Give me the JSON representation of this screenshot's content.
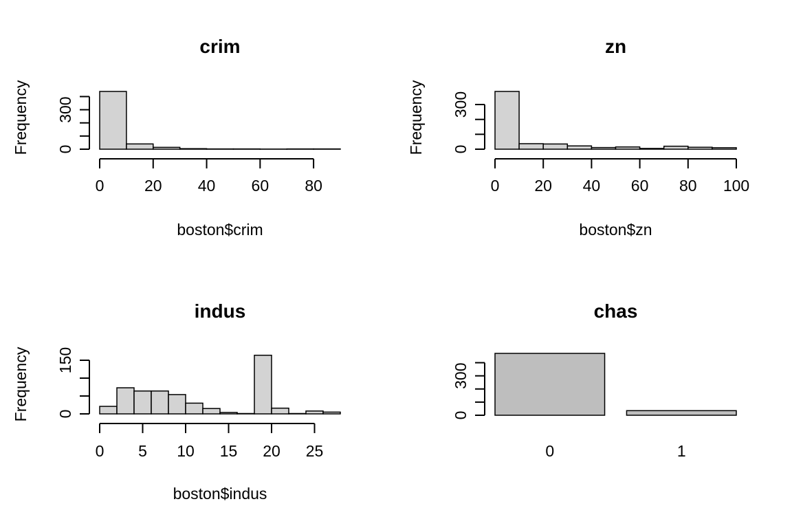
{
  "chart_data": [
    {
      "type": "histogram",
      "title": "crim",
      "xlabel": "boston$crim",
      "ylabel": "Frequency",
      "bin_width": 10,
      "bins": [
        [
          0,
          10
        ],
        [
          10,
          20
        ],
        [
          20,
          30
        ],
        [
          30,
          40
        ],
        [
          40,
          50
        ],
        [
          50,
          60
        ],
        [
          60,
          70
        ],
        [
          70,
          80
        ],
        [
          80,
          90
        ]
      ],
      "values": [
        439,
        40,
        14,
        4,
        2,
        2,
        1,
        2,
        2
      ],
      "xlim": [
        0,
        90
      ],
      "ylim": [
        0,
        439
      ],
      "x_ticks": [
        0,
        20,
        40,
        60,
        80
      ],
      "y_ticks": [
        0,
        100,
        200,
        300,
        400
      ],
      "y_tick_labels": [
        "0",
        "",
        "",
        "300",
        ""
      ],
      "bar_color": "#d3d3d3"
    },
    {
      "type": "histogram",
      "title": "zn",
      "xlabel": "boston$zn",
      "ylabel": "Frequency",
      "bin_width": 10,
      "bins": [
        [
          0,
          10
        ],
        [
          10,
          20
        ],
        [
          20,
          30
        ],
        [
          30,
          40
        ],
        [
          40,
          50
        ],
        [
          50,
          60
        ],
        [
          60,
          70
        ],
        [
          70,
          80
        ],
        [
          80,
          90
        ],
        [
          90,
          100
        ]
      ],
      "values": [
        388,
        37,
        35,
        22,
        11,
        15,
        5,
        20,
        13,
        10
      ],
      "xlim": [
        0,
        100
      ],
      "ylim": [
        0,
        388
      ],
      "x_ticks": [
        0,
        20,
        40,
        60,
        80,
        100
      ],
      "y_ticks": [
        0,
        100,
        200,
        300
      ],
      "y_tick_labels": [
        "0",
        "",
        "",
        "300"
      ],
      "bar_color": "#d3d3d3"
    },
    {
      "type": "histogram",
      "title": "indus",
      "xlabel": "boston$indus",
      "ylabel": "Frequency",
      "bin_width": 2,
      "bins": [
        [
          0,
          2
        ],
        [
          2,
          4
        ],
        [
          4,
          6
        ],
        [
          6,
          8
        ],
        [
          8,
          10
        ],
        [
          10,
          12
        ],
        [
          12,
          14
        ],
        [
          14,
          16
        ],
        [
          16,
          18
        ],
        [
          18,
          20
        ],
        [
          20,
          22
        ],
        [
          22,
          24
        ],
        [
          24,
          26
        ],
        [
          26,
          28
        ]
      ],
      "values": [
        21,
        73,
        64,
        64,
        54,
        30,
        15,
        4,
        1,
        164,
        16,
        1,
        8,
        5
      ],
      "xlim": [
        0,
        28
      ],
      "ylim": [
        0,
        150
      ],
      "x_ticks": [
        0,
        5,
        10,
        15,
        20,
        25
      ],
      "y_ticks": [
        0,
        50,
        100,
        150
      ],
      "y_tick_labels": [
        "0",
        "",
        "",
        "150"
      ],
      "bar_color": "#d3d3d3"
    },
    {
      "type": "bar",
      "title": "chas",
      "categories": [
        "0",
        "1"
      ],
      "values": [
        471,
        35
      ],
      "y_ticks": [
        0,
        100,
        200,
        300,
        400
      ],
      "y_tick_labels": [
        "0",
        "",
        "",
        "300",
        ""
      ],
      "bar_color": "#bebebe"
    }
  ]
}
